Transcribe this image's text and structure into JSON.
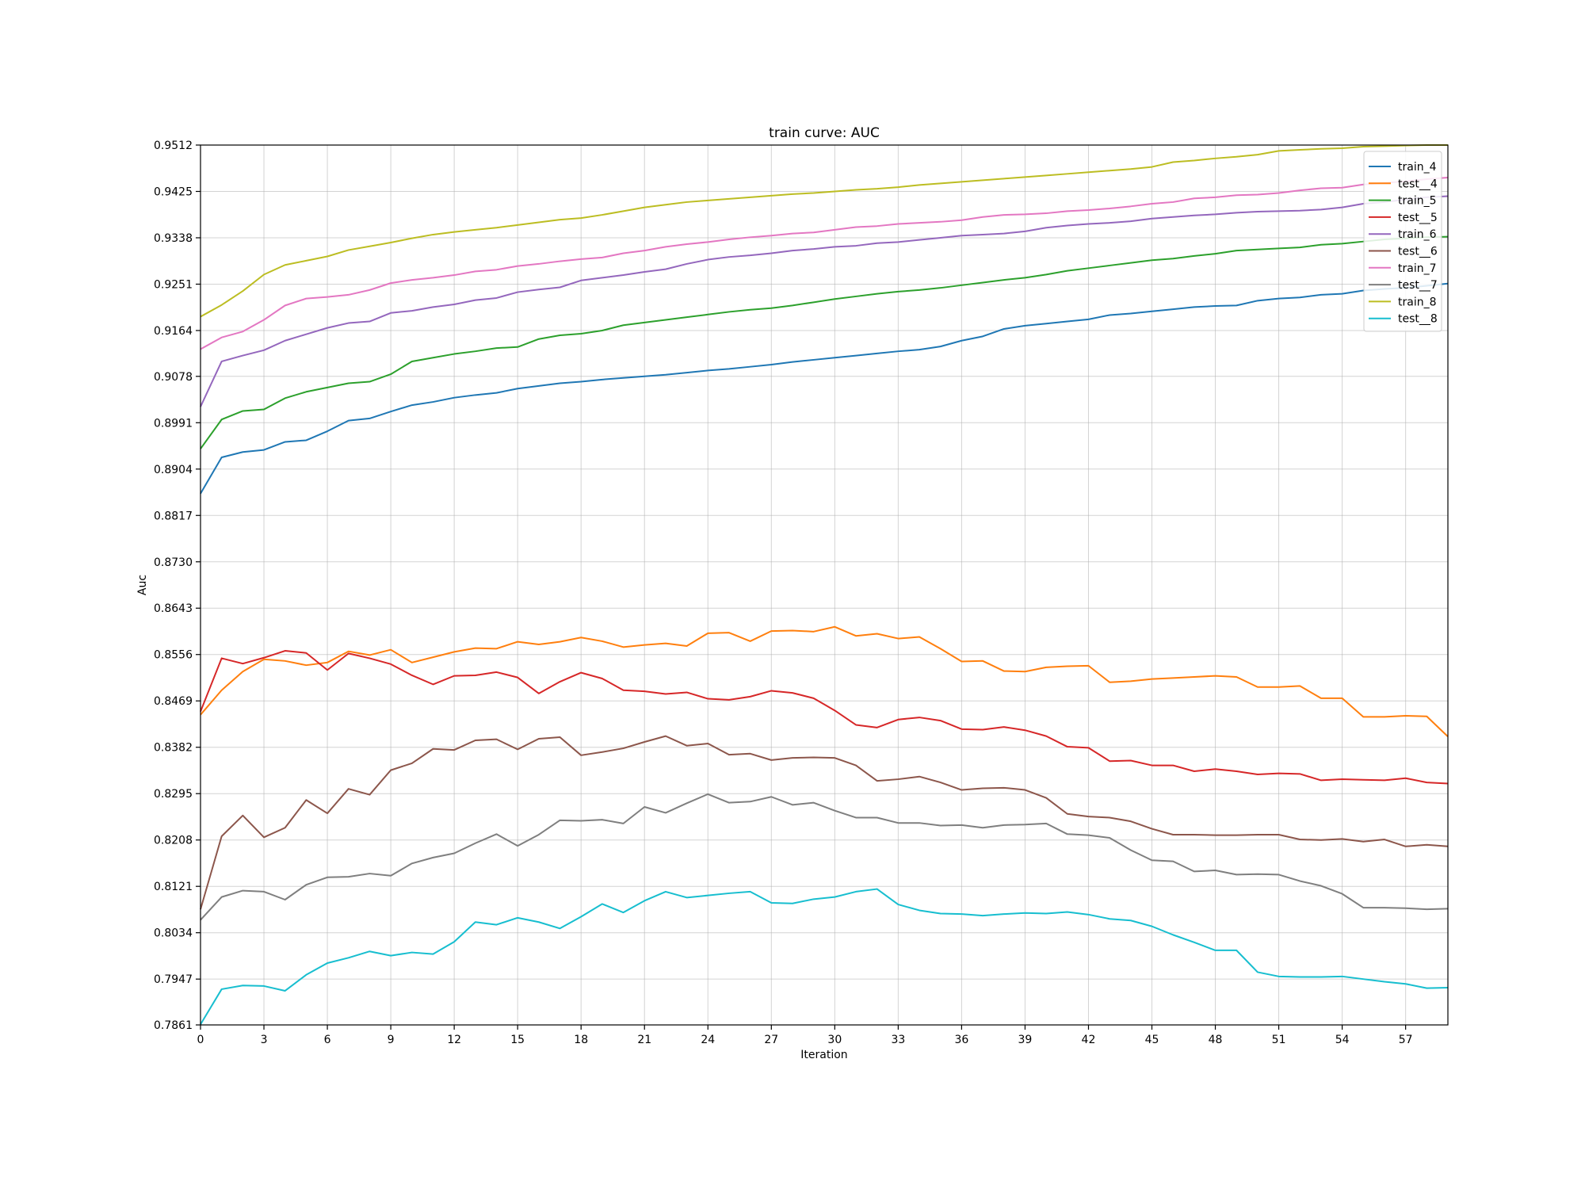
{
  "chart_data": {
    "type": "line",
    "title": "train curve: AUC",
    "xlabel": "Iteration",
    "ylabel": "Auc",
    "xlim": [
      0,
      59
    ],
    "ylim": [
      0.7861,
      0.9512
    ],
    "xticks": [
      0,
      3,
      6,
      9,
      12,
      15,
      18,
      21,
      24,
      27,
      30,
      33,
      36,
      39,
      42,
      45,
      48,
      51,
      54,
      57
    ],
    "yticks": [
      0.7861,
      0.7947,
      0.8034,
      0.8121,
      0.8208,
      0.8295,
      0.8382,
      0.8469,
      0.8556,
      0.8643,
      0.873,
      0.8817,
      0.8904,
      0.8991,
      0.9078,
      0.9164,
      0.9251,
      0.9338,
      0.9425,
      0.9512
    ],
    "ytick_labels": [
      "0.7861",
      "0.7947",
      "0.8034",
      "0.8121",
      "0.8208",
      "0.8295",
      "0.8382",
      "0.8469",
      "0.8556",
      "0.8643",
      "0.8730",
      "0.8817",
      "0.8904",
      "0.8991",
      "0.9078",
      "0.9164",
      "0.9251",
      "0.9338",
      "0.9425",
      "0.9512"
    ],
    "grid": true,
    "legend_position": "top-right",
    "series": [
      {
        "name": "train_4",
        "color": "#1f77b4",
        "values": [
          0.8858,
          0.8926,
          0.8936,
          0.894,
          0.8955,
          0.8958,
          0.8975,
          0.8995,
          0.8999,
          0.9012,
          0.9024,
          0.903,
          0.9038,
          0.9043,
          0.9047,
          0.9055,
          0.906,
          0.9065,
          0.9068,
          0.9072,
          0.9075,
          0.9078,
          0.9081,
          0.9085,
          0.9089,
          0.9092,
          0.9096,
          0.91,
          0.9105,
          0.9109,
          0.9113,
          0.9117,
          0.9121,
          0.9125,
          0.9128,
          0.9134,
          0.9145,
          0.9153,
          0.9167,
          0.9173,
          0.9177,
          0.9181,
          0.9185,
          0.9193,
          0.9196,
          0.92,
          0.9204,
          0.9208,
          0.921,
          0.9211,
          0.922,
          0.9224,
          0.9226,
          0.9231,
          0.9233,
          0.9239,
          0.9242,
          0.9244,
          0.9248,
          0.9252
        ]
      },
      {
        "name": "test__4",
        "color": "#ff7f0e",
        "values": [
          0.8443,
          0.8489,
          0.8524,
          0.8547,
          0.8544,
          0.8536,
          0.8541,
          0.8562,
          0.8555,
          0.8565,
          0.8541,
          0.8551,
          0.8561,
          0.8568,
          0.8567,
          0.858,
          0.8575,
          0.858,
          0.8588,
          0.8581,
          0.857,
          0.8574,
          0.8577,
          0.8572,
          0.8596,
          0.8597,
          0.8581,
          0.86,
          0.8601,
          0.8599,
          0.8608,
          0.8591,
          0.8595,
          0.8586,
          0.8589,
          0.8567,
          0.8543,
          0.8544,
          0.8525,
          0.8524,
          0.8532,
          0.8534,
          0.8535,
          0.8504,
          0.8506,
          0.851,
          0.8512,
          0.8514,
          0.8516,
          0.8514,
          0.8495,
          0.8495,
          0.8497,
          0.8474,
          0.8474,
          0.8439,
          0.8439,
          0.8441,
          0.844,
          0.8402
        ]
      },
      {
        "name": "train_5",
        "color": "#2ca02c",
        "values": [
          0.8942,
          0.8997,
          0.9013,
          0.9016,
          0.9037,
          0.9049,
          0.9057,
          0.9065,
          0.9068,
          0.9082,
          0.9106,
          0.9113,
          0.912,
          0.9125,
          0.9131,
          0.9133,
          0.9148,
          0.9155,
          0.9158,
          0.9164,
          0.9174,
          0.9179,
          0.9184,
          0.9189,
          0.9194,
          0.9199,
          0.9203,
          0.9206,
          0.9211,
          0.9217,
          0.9223,
          0.9228,
          0.9233,
          0.9237,
          0.924,
          0.9244,
          0.9249,
          0.9254,
          0.9259,
          0.9263,
          0.9269,
          0.9276,
          0.9281,
          0.9286,
          0.9291,
          0.9296,
          0.9299,
          0.9304,
          0.9308,
          0.9314,
          0.9316,
          0.9318,
          0.932,
          0.9325,
          0.9327,
          0.9331,
          0.9335,
          0.9337,
          0.9339,
          0.934
        ]
      },
      {
        "name": "test__5",
        "color": "#d62728",
        "values": [
          0.8449,
          0.8549,
          0.8539,
          0.855,
          0.8563,
          0.8559,
          0.8527,
          0.8558,
          0.8549,
          0.8538,
          0.8517,
          0.85,
          0.8516,
          0.8517,
          0.8523,
          0.8513,
          0.8483,
          0.8505,
          0.8522,
          0.8511,
          0.8489,
          0.8487,
          0.8482,
          0.8485,
          0.8473,
          0.8471,
          0.8477,
          0.8488,
          0.8484,
          0.8474,
          0.8451,
          0.8424,
          0.8419,
          0.8434,
          0.8438,
          0.8432,
          0.8416,
          0.8415,
          0.842,
          0.8414,
          0.8403,
          0.8383,
          0.8381,
          0.8356,
          0.8357,
          0.8348,
          0.8348,
          0.8337,
          0.8341,
          0.8337,
          0.8331,
          0.8333,
          0.8332,
          0.832,
          0.8322,
          0.8321,
          0.832,
          0.8324,
          0.8316,
          0.8314
        ]
      },
      {
        "name": "train_6",
        "color": "#9467bd",
        "values": [
          0.9021,
          0.9106,
          0.9117,
          0.9127,
          0.9145,
          0.9157,
          0.9169,
          0.9178,
          0.9181,
          0.9197,
          0.9201,
          0.9208,
          0.9213,
          0.9221,
          0.9225,
          0.9236,
          0.9241,
          0.9245,
          0.9258,
          0.9263,
          0.9268,
          0.9274,
          0.9279,
          0.9289,
          0.9297,
          0.9302,
          0.9305,
          0.9309,
          0.9314,
          0.9317,
          0.9321,
          0.9323,
          0.9328,
          0.933,
          0.9334,
          0.9338,
          0.9342,
          0.9344,
          0.9346,
          0.935,
          0.9357,
          0.9361,
          0.9364,
          0.9366,
          0.9369,
          0.9374,
          0.9377,
          0.938,
          0.9382,
          0.9385,
          0.9387,
          0.9388,
          0.9389,
          0.9391,
          0.9395,
          0.9402,
          0.9405,
          0.941,
          0.9414,
          0.9416
        ]
      },
      {
        "name": "test__6",
        "color": "#8c564b",
        "values": [
          0.8078,
          0.8215,
          0.8254,
          0.8213,
          0.8231,
          0.8283,
          0.8258,
          0.8304,
          0.8293,
          0.8339,
          0.8352,
          0.8379,
          0.8377,
          0.8395,
          0.8397,
          0.8378,
          0.8398,
          0.8401,
          0.8367,
          0.8373,
          0.838,
          0.8392,
          0.8403,
          0.8385,
          0.8389,
          0.8368,
          0.837,
          0.8358,
          0.8362,
          0.8363,
          0.8362,
          0.8348,
          0.8319,
          0.8322,
          0.8327,
          0.8316,
          0.8302,
          0.8305,
          0.8306,
          0.8302,
          0.8287,
          0.8257,
          0.8252,
          0.825,
          0.8243,
          0.8229,
          0.8218,
          0.8218,
          0.8217,
          0.8217,
          0.8218,
          0.8218,
          0.8209,
          0.8208,
          0.821,
          0.8205,
          0.8209,
          0.8196,
          0.8199,
          0.8196
        ]
      },
      {
        "name": "train_7",
        "color": "#e377c2",
        "values": [
          0.9129,
          0.9151,
          0.9162,
          0.9184,
          0.9211,
          0.9224,
          0.9227,
          0.9231,
          0.924,
          0.9253,
          0.9259,
          0.9263,
          0.9268,
          0.9275,
          0.9278,
          0.9285,
          0.9289,
          0.9294,
          0.9298,
          0.9301,
          0.9309,
          0.9314,
          0.9321,
          0.9326,
          0.933,
          0.9335,
          0.9339,
          0.9342,
          0.9346,
          0.9348,
          0.9353,
          0.9358,
          0.936,
          0.9364,
          0.9366,
          0.9368,
          0.9371,
          0.9377,
          0.9381,
          0.9382,
          0.9384,
          0.9388,
          0.939,
          0.9393,
          0.9397,
          0.9402,
          0.9405,
          0.9412,
          0.9414,
          0.9418,
          0.9419,
          0.9422,
          0.9427,
          0.9431,
          0.9432,
          0.9438,
          0.9441,
          0.9444,
          0.9448,
          0.9451
        ]
      },
      {
        "name": "test__7",
        "color": "#7f7f7f",
        "values": [
          0.8058,
          0.8101,
          0.8113,
          0.8111,
          0.8096,
          0.8124,
          0.8138,
          0.8139,
          0.8145,
          0.8141,
          0.8164,
          0.8175,
          0.8183,
          0.8202,
          0.8219,
          0.8197,
          0.8218,
          0.8245,
          0.8244,
          0.8246,
          0.8239,
          0.827,
          0.8259,
          0.8277,
          0.8294,
          0.8278,
          0.828,
          0.8289,
          0.8274,
          0.8278,
          0.8263,
          0.825,
          0.825,
          0.824,
          0.824,
          0.8235,
          0.8236,
          0.8231,
          0.8236,
          0.8237,
          0.8239,
          0.8219,
          0.8217,
          0.8212,
          0.8189,
          0.817,
          0.8168,
          0.8149,
          0.8151,
          0.8143,
          0.8144,
          0.8143,
          0.8131,
          0.8122,
          0.8107,
          0.8081,
          0.8081,
          0.808,
          0.8078,
          0.8079
        ]
      },
      {
        "name": "train_8",
        "color": "#bcbd22",
        "values": [
          0.919,
          0.9212,
          0.9238,
          0.9269,
          0.9287,
          0.9295,
          0.9303,
          0.9315,
          0.9322,
          0.9329,
          0.9337,
          0.9344,
          0.9349,
          0.9353,
          0.9357,
          0.9362,
          0.9367,
          0.9372,
          0.9375,
          0.9381,
          0.9388,
          0.9395,
          0.94,
          0.9405,
          0.9408,
          0.9411,
          0.9414,
          0.9417,
          0.942,
          0.9422,
          0.9425,
          0.9428,
          0.943,
          0.9433,
          0.9437,
          0.944,
          0.9443,
          0.9446,
          0.9449,
          0.9452,
          0.9455,
          0.9458,
          0.9461,
          0.9464,
          0.9467,
          0.9471,
          0.948,
          0.9483,
          0.9487,
          0.949,
          0.9494,
          0.9501,
          0.9503,
          0.9505,
          0.9506,
          0.9509,
          0.951,
          0.9511,
          0.9512,
          0.9512
        ]
      },
      {
        "name": "test__8",
        "color": "#17becf",
        "values": [
          0.7862,
          0.7928,
          0.7935,
          0.7934,
          0.7925,
          0.7955,
          0.7977,
          0.7987,
          0.7999,
          0.7991,
          0.7997,
          0.7994,
          0.8017,
          0.8054,
          0.8049,
          0.8062,
          0.8054,
          0.8042,
          0.8064,
          0.8088,
          0.8072,
          0.8094,
          0.8111,
          0.81,
          0.8104,
          0.8108,
          0.8111,
          0.809,
          0.8089,
          0.8097,
          0.8101,
          0.8111,
          0.8116,
          0.8087,
          0.8076,
          0.807,
          0.8069,
          0.8066,
          0.8069,
          0.8071,
          0.807,
          0.8073,
          0.8068,
          0.806,
          0.8057,
          0.8046,
          0.803,
          0.8016,
          0.8001,
          0.8001,
          0.796,
          0.7952,
          0.7951,
          0.7951,
          0.7952,
          0.7947,
          0.7942,
          0.7938,
          0.793,
          0.7931
        ]
      }
    ]
  }
}
